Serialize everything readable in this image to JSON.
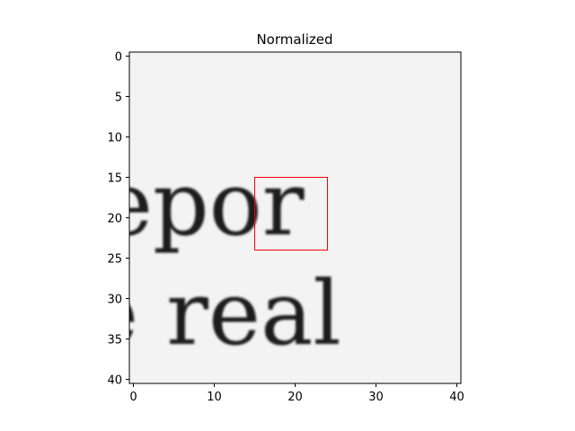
{
  "chart_data": {
    "type": "heatmap",
    "title": "Normalized",
    "xlabel": "",
    "ylabel": "",
    "colormap": "gray (dark = ink, light = paper)",
    "image_size": [
      41,
      41
    ],
    "x_ticks": [
      0,
      10,
      20,
      30,
      40
    ],
    "y_ticks": [
      0,
      5,
      10,
      15,
      20,
      25,
      30,
      35,
      40
    ],
    "visible_text_in_image": [
      "epor",
      "e real"
    ],
    "highlight_box": {
      "x0": 15,
      "y0": 15,
      "x1": 24,
      "y1": 24,
      "color": "#ff0000"
    }
  }
}
